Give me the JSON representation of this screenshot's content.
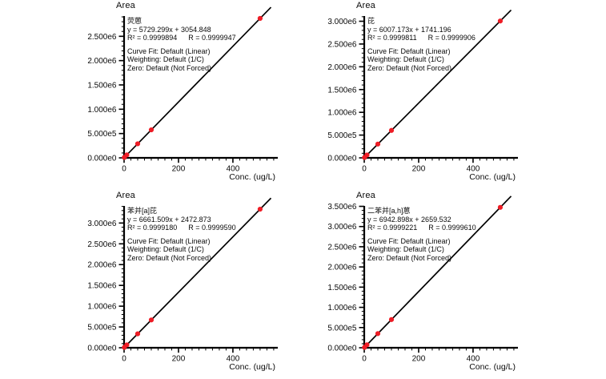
{
  "page": {
    "background": "#ffffff"
  },
  "chart_data": [
    {
      "type": "scatter",
      "title": "荧蒽",
      "equation": "y = 5729.299x + 3054.848",
      "r2": "R² = 0.9999894",
      "r": "R = 0.9999947",
      "curve_fit": "Curve Fit: Default (Linear)",
      "weighting": "Weighting: Default (1/C)",
      "zero": "Zero: Default (Not Forced)",
      "ylabel": "Area",
      "xlabel": "Conc. (ug/L)",
      "x": [
        1,
        10,
        50,
        100,
        500
      ],
      "y": [
        8784,
        60348,
        289520,
        575985,
        2867704
      ],
      "fit_line": {
        "slope": 5729.299,
        "intercept": 3054.848
      },
      "xlim": [
        0,
        565
      ],
      "ylim": [
        0,
        2950000
      ],
      "x_major_ticks": [
        {
          "value": 0,
          "label": "0"
        },
        {
          "value": 200,
          "label": "200"
        },
        {
          "value": 400,
          "label": "400"
        }
      ],
      "y_major_ticks": [
        {
          "value": 0,
          "label": "0.000e0"
        },
        {
          "value": 500000,
          "label": "5.000e5"
        },
        {
          "value": 1000000,
          "label": "1.000e6"
        },
        {
          "value": 1500000,
          "label": "1.500e6"
        },
        {
          "value": 2000000,
          "label": "2.000e6"
        },
        {
          "value": 2500000,
          "label": "2.500e6"
        }
      ],
      "x_minor_step": 25,
      "y_minor_step": 100000,
      "point_color": "#ee1c25",
      "line_color": "#000000"
    },
    {
      "type": "scatter",
      "title": "芘",
      "equation": "y = 6007.173x + 1741.196",
      "r2": "R² = 0.9999811",
      "r": "R = 0.9999906",
      "curve_fit": "Curve Fit: Default (Linear)",
      "weighting": "Weighting: Default (1/C)",
      "zero": "Zero: Default (Not Forced)",
      "ylabel": "Area",
      "xlabel": "Conc. (ug/L)",
      "x": [
        1,
        10,
        50,
        100,
        500
      ],
      "y": [
        7748,
        61813,
        302100,
        602459,
        3005328
      ],
      "fit_line": {
        "slope": 6007.173,
        "intercept": 1741.196
      },
      "xlim": [
        0,
        565
      ],
      "ylim": [
        0,
        3150000
      ],
      "x_major_ticks": [
        {
          "value": 0,
          "label": "0"
        },
        {
          "value": 200,
          "label": "200"
        },
        {
          "value": 400,
          "label": "400"
        }
      ],
      "y_major_ticks": [
        {
          "value": 0,
          "label": "0.000e0"
        },
        {
          "value": 500000,
          "label": "5.000e5"
        },
        {
          "value": 1000000,
          "label": "1.000e6"
        },
        {
          "value": 1500000,
          "label": "1.500e6"
        },
        {
          "value": 2000000,
          "label": "2.000e6"
        },
        {
          "value": 2500000,
          "label": "2.500e6"
        },
        {
          "value": 3000000,
          "label": "3.000e6"
        }
      ],
      "x_minor_step": 25,
      "y_minor_step": 100000,
      "point_color": "#ee1c25",
      "line_color": "#000000"
    },
    {
      "type": "scatter",
      "title": "苯并[a]芘",
      "equation": "y = 6661.509x + 2472.873",
      "r2": "R² = 0.9999180",
      "r": "R = 0.9999590",
      "curve_fit": "Curve Fit: Default (Linear)",
      "weighting": "Weighting: Default (1/C)",
      "zero": "Zero: Default (Not Forced)",
      "ylabel": "Area",
      "xlabel": "Conc. (ug/L)",
      "x": [
        1,
        10,
        50,
        100,
        500
      ],
      "y": [
        9134,
        69088,
        335548,
        668624,
        3333227
      ],
      "fit_line": {
        "slope": 6661.509,
        "intercept": 2472.873
      },
      "xlim": [
        0,
        565
      ],
      "ylim": [
        0,
        3450000
      ],
      "x_major_ticks": [
        {
          "value": 0,
          "label": "0"
        },
        {
          "value": 200,
          "label": "200"
        },
        {
          "value": 400,
          "label": "400"
        }
      ],
      "y_major_ticks": [
        {
          "value": 0,
          "label": "0.000e0"
        },
        {
          "value": 500000,
          "label": "5.000e5"
        },
        {
          "value": 1000000,
          "label": "1.000e6"
        },
        {
          "value": 1500000,
          "label": "1.500e6"
        },
        {
          "value": 2000000,
          "label": "2.000e6"
        },
        {
          "value": 2500000,
          "label": "2.500e6"
        },
        {
          "value": 3000000,
          "label": "3.000e6"
        }
      ],
      "x_minor_step": 25,
      "y_minor_step": 100000,
      "point_color": "#ee1c25",
      "line_color": "#000000"
    },
    {
      "type": "scatter",
      "title": "二苯并[a,h]蒽",
      "equation": "y = 6942.898x + 2659.532",
      "r2": "R² = 0.9999221",
      "r": "R = 0.9999610",
      "curve_fit": "Curve Fit: Default (Linear)",
      "weighting": "Weighting: Default (1/C)",
      "zero": "Zero: Default (Not Forced)",
      "ylabel": "Area",
      "xlabel": "Conc. (ug/L)",
      "x": [
        1,
        10,
        50,
        100,
        500
      ],
      "y": [
        9602,
        72089,
        349804,
        696949,
        3474109
      ],
      "fit_line": {
        "slope": 6942.898,
        "intercept": 2659.532
      },
      "xlim": [
        0,
        565
      ],
      "ylim": [
        0,
        3550000
      ],
      "x_major_ticks": [
        {
          "value": 0,
          "label": "0"
        },
        {
          "value": 200,
          "label": "200"
        },
        {
          "value": 400,
          "label": "400"
        }
      ],
      "y_major_ticks": [
        {
          "value": 0,
          "label": "0.000e0"
        },
        {
          "value": 500000,
          "label": "5.000e5"
        },
        {
          "value": 1000000,
          "label": "1.000e6"
        },
        {
          "value": 1500000,
          "label": "1.500e6"
        },
        {
          "value": 2000000,
          "label": "2.000e6"
        },
        {
          "value": 2500000,
          "label": "2.500e6"
        },
        {
          "value": 3000000,
          "label": "3.000e6"
        },
        {
          "value": 3500000,
          "label": "3.500e6"
        }
      ],
      "x_minor_step": 25,
      "y_minor_step": 100000,
      "point_color": "#ee1c25",
      "line_color": "#000000"
    }
  ]
}
